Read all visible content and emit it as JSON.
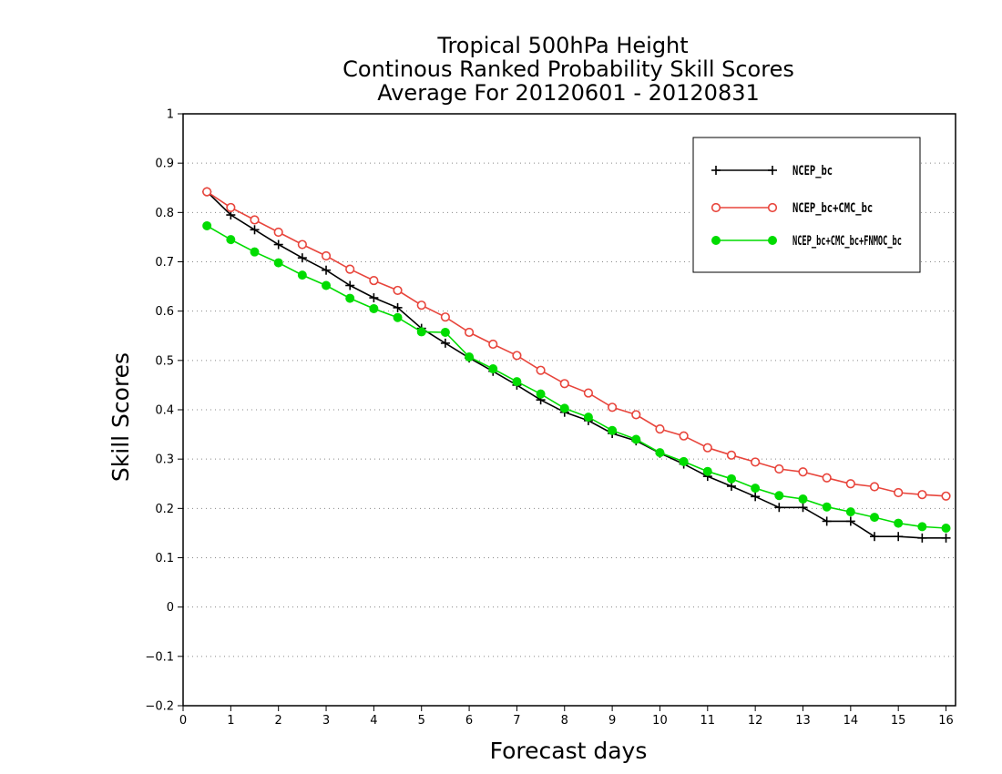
{
  "chart_data": {
    "type": "line",
    "title": [
      "Tropical 500hPa Height",
      "Continous Ranked Probability Skill Scores",
      "Average For 20120601 - 20120831"
    ],
    "xlabel": "Forecast days",
    "ylabel": "Skill Scores",
    "xlim": [
      0,
      16.2
    ],
    "ylim": [
      -0.2,
      1
    ],
    "xticks": [
      0,
      1,
      2,
      3,
      4,
      5,
      6,
      7,
      8,
      9,
      10,
      11,
      12,
      13,
      14,
      15,
      16
    ],
    "xtick_labels": [
      "0",
      "1",
      "2",
      "3",
      "4",
      "5",
      "6",
      "7",
      "8",
      "9",
      "10",
      "11",
      "12",
      "13",
      "14",
      "15",
      "16"
    ],
    "yticks": [
      -0.2,
      -0.1,
      0,
      0.1,
      0.2,
      0.3,
      0.4,
      0.5,
      0.6,
      0.7,
      0.8,
      0.9,
      1
    ],
    "ytick_labels": [
      "−0.2",
      "−0.1",
      "0",
      "0.1",
      "0.2",
      "0.3",
      "0.4",
      "0.5",
      "0.6",
      "0.7",
      "0.8",
      "0.9",
      "1"
    ],
    "grid": "horizontal dotted",
    "legend_position": "top-right",
    "x": [
      0.5,
      1,
      1.5,
      2,
      2.5,
      3,
      3.5,
      4,
      4.5,
      5,
      5.5,
      6,
      6.5,
      7,
      7.5,
      8,
      8.5,
      9,
      9.5,
      10,
      10.5,
      11,
      11.5,
      12,
      12.5,
      13,
      13.5,
      14,
      14.5,
      15,
      15.5,
      16
    ],
    "series": [
      {
        "name": "NCEP_bc",
        "color": "#000000",
        "marker": "plus",
        "values": [
          0.842,
          0.795,
          0.765,
          0.735,
          0.708,
          0.683,
          0.652,
          0.627,
          0.607,
          0.565,
          0.535,
          0.505,
          0.478,
          0.45,
          0.42,
          0.395,
          0.378,
          0.352,
          0.337,
          0.312,
          0.29,
          0.265,
          0.245,
          0.224,
          0.202,
          0.202,
          0.174,
          0.174,
          0.143,
          0.143,
          0.14,
          0.14
        ]
      },
      {
        "name": "NCEP_bc+CMC_bc",
        "color": "#e8453c",
        "marker": "open-circle",
        "values": [
          0.842,
          0.81,
          0.785,
          0.76,
          0.735,
          0.712,
          0.685,
          0.662,
          0.642,
          0.612,
          0.588,
          0.557,
          0.533,
          0.51,
          0.48,
          0.453,
          0.434,
          0.405,
          0.39,
          0.361,
          0.347,
          0.323,
          0.308,
          0.294,
          0.28,
          0.274,
          0.262,
          0.25,
          0.244,
          0.232,
          0.228,
          0.225
        ]
      },
      {
        "name": "NCEP_bc+CMC_bc+FNMOC_bc",
        "color": "#00dc00",
        "marker": "filled-circle",
        "values": [
          0.773,
          0.745,
          0.72,
          0.698,
          0.673,
          0.652,
          0.626,
          0.605,
          0.587,
          0.558,
          0.557,
          0.507,
          0.483,
          0.457,
          0.432,
          0.403,
          0.385,
          0.358,
          0.34,
          0.313,
          0.295,
          0.275,
          0.26,
          0.241,
          0.226,
          0.219,
          0.203,
          0.193,
          0.182,
          0.17,
          0.163,
          0.16
        ]
      }
    ]
  }
}
